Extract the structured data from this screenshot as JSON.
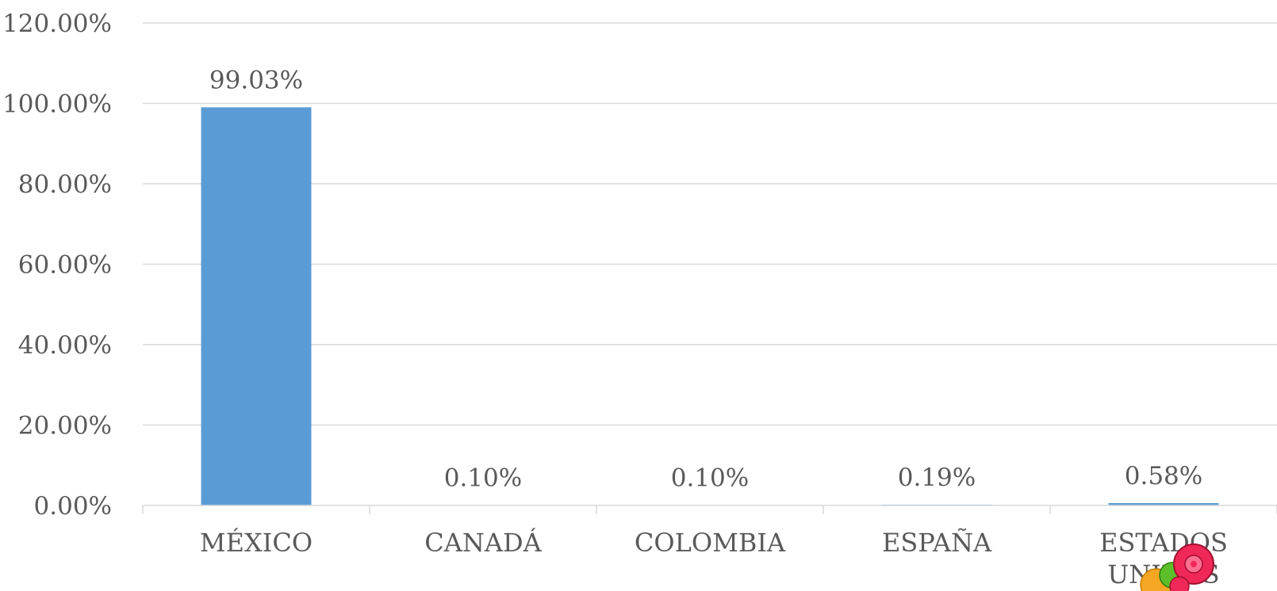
{
  "chart_data": {
    "type": "bar",
    "title": "",
    "xlabel": "",
    "ylabel": "",
    "categories": [
      "MÉXICO",
      "CANADÁ",
      "COLOMBIA",
      "ESPAÑA",
      "ESTADOS UNIDOS"
    ],
    "values": [
      99.03,
      0.1,
      0.1,
      0.19,
      0.58
    ],
    "data_labels": [
      "99.03%",
      "0.10%",
      "0.10%",
      "0.19%",
      "0.58%"
    ],
    "yticks": [
      "0.00%",
      "20.00%",
      "40.00%",
      "60.00%",
      "80.00%",
      "100.00%",
      "120.00%"
    ],
    "ylim": [
      0,
      120
    ],
    "grid": true,
    "legend": "none",
    "bar_color": "#5b9bd5"
  }
}
